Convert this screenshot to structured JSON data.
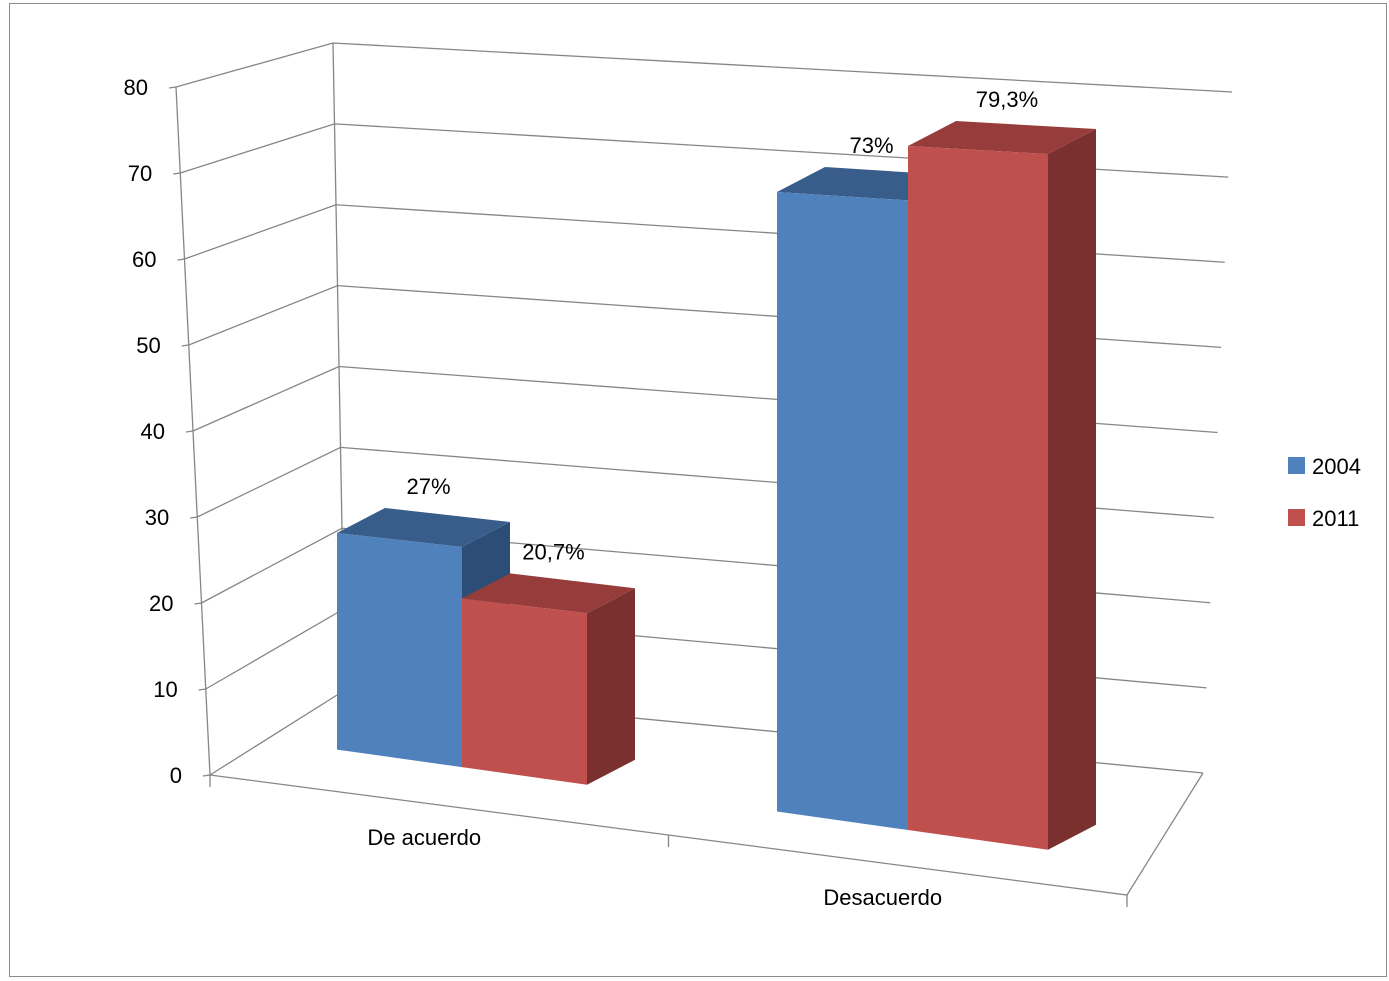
{
  "chart_data": {
    "type": "bar",
    "style": "3d-clustered",
    "categories": [
      "De acuerdo",
      "Desacuerdo"
    ],
    "series": [
      {
        "name": "2004",
        "values": [
          27,
          73
        ],
        "labels": [
          "27%",
          "73%"
        ],
        "color": "#4f81bd",
        "top_color": "#385d8a",
        "side_color": "#2c4d75"
      },
      {
        "name": "2011",
        "values": [
          20.7,
          79.3
        ],
        "labels": [
          "20,7%",
          "79,3%"
        ],
        "color": "#c0504d",
        "top_color": "#963c3a",
        "side_color": "#7a302e"
      }
    ],
    "ylim": [
      0,
      80
    ],
    "yticks": [
      "0",
      "10",
      "20",
      "30",
      "40",
      "50",
      "60",
      "70",
      "80"
    ],
    "grid": true,
    "legend_position": "right",
    "title": "",
    "xlabel": "",
    "ylabel": ""
  }
}
